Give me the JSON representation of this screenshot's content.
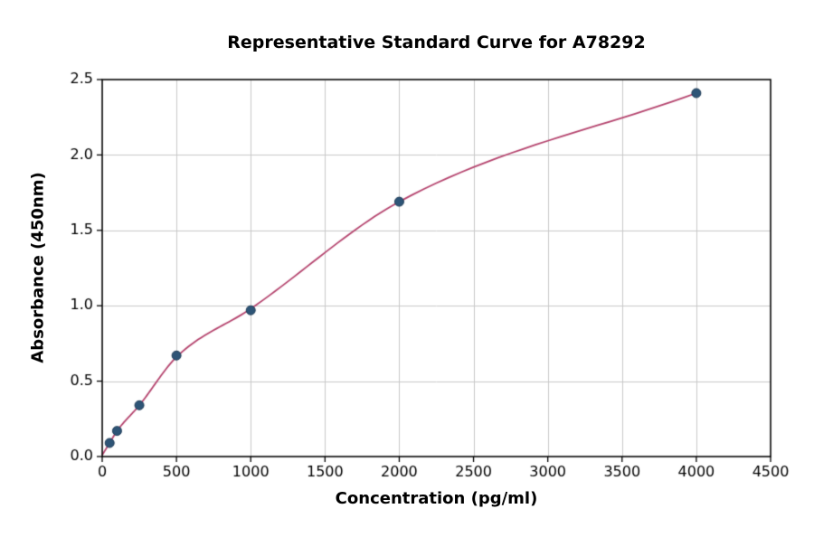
{
  "figure": {
    "background": "#ffffff"
  },
  "chart_data": {
    "type": "scatter",
    "title": "Representative Standard Curve for A78292",
    "xlabel": "Concentration (pg/ml)",
    "ylabel": "Absorbance (450nm)",
    "xlim": [
      0,
      4500
    ],
    "ylim": [
      0,
      2.5
    ],
    "x_ticks": [
      0,
      500,
      1000,
      1500,
      2000,
      2500,
      3000,
      3500,
      4000,
      4500
    ],
    "y_ticks": [
      0,
      0.5,
      1,
      1.5,
      2,
      2.5
    ],
    "y_tick_decimals": 1,
    "grid": true,
    "grid_color": "#c9c9c9",
    "axis_color": "#000000",
    "point_color": "#2e5577",
    "point_edge_color": "#1f3c57",
    "curve_color": "#b5446e",
    "points": [
      {
        "x": 50,
        "y": 0.09
      },
      {
        "x": 100,
        "y": 0.17
      },
      {
        "x": 250,
        "y": 0.34
      },
      {
        "x": 500,
        "y": 0.67
      },
      {
        "x": 1000,
        "y": 0.97
      },
      {
        "x": 2000,
        "y": 1.69
      },
      {
        "x": 4000,
        "y": 2.41
      }
    ],
    "curve_points": [
      {
        "x": 0,
        "y": 0.01
      },
      {
        "x": 50,
        "y": 0.09
      },
      {
        "x": 100,
        "y": 0.17
      },
      {
        "x": 250,
        "y": 0.34
      },
      {
        "x": 500,
        "y": 0.66
      },
      {
        "x": 1000,
        "y": 0.98
      },
      {
        "x": 2000,
        "y": 1.69
      },
      {
        "x": 4000,
        "y": 2.41
      }
    ]
  }
}
